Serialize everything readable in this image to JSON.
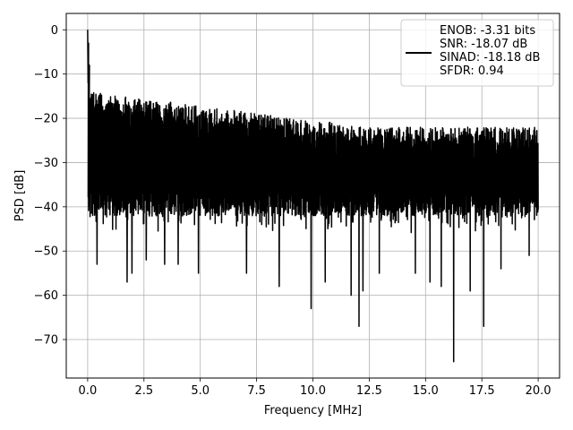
{
  "chart_data": {
    "type": "line",
    "title": "",
    "xlabel": "Frequency [MHz]",
    "ylabel": "PSD [dB]",
    "xlim": [
      -0.95,
      20.95
    ],
    "ylim": [
      -78.7,
      3.7
    ],
    "x_ticks": [
      0.0,
      2.5,
      5.0,
      7.5,
      10.0,
      12.5,
      15.0,
      17.5,
      20.0
    ],
    "x_tick_labels": [
      "0.0",
      "2.5",
      "5.0",
      "7.5",
      "10.0",
      "12.5",
      "15.0",
      "17.5",
      "20.0"
    ],
    "y_ticks": [
      0,
      -10,
      -20,
      -30,
      -40,
      -50,
      -60,
      -70
    ],
    "y_tick_labels": [
      "0",
      "−10",
      "−20",
      "−30",
      "−40",
      "−50",
      "−60",
      "−70"
    ],
    "grid": true,
    "legend_position": "top-right",
    "legend_lines": [
      "ENOB: -3.31 bits",
      "SNR: -18.07 dB",
      "SINAD: -18.18 dB",
      "SFDR: 0.94"
    ],
    "series": [
      {
        "color": "#000000",
        "x_range": [
          0.0,
          20.0
        ],
        "peak": {
          "x": 0.0,
          "y": 0
        },
        "spur": {
          "x": 0.08,
          "y": -8
        },
        "upper_envelope_start": -14,
        "upper_envelope_end": -22,
        "noise_floor_mean": -30,
        "lower_envelope": -42,
        "dips": [
          {
            "x": 0.42,
            "y": -53
          },
          {
            "x": 1.75,
            "y": -57
          },
          {
            "x": 1.97,
            "y": -55
          },
          {
            "x": 2.6,
            "y": -52
          },
          {
            "x": 3.42,
            "y": -53
          },
          {
            "x": 4.02,
            "y": -53
          },
          {
            "x": 4.92,
            "y": -55
          },
          {
            "x": 7.05,
            "y": -55
          },
          {
            "x": 8.5,
            "y": -58
          },
          {
            "x": 9.92,
            "y": -63
          },
          {
            "x": 10.55,
            "y": -57
          },
          {
            "x": 11.7,
            "y": -60
          },
          {
            "x": 12.05,
            "y": -67
          },
          {
            "x": 12.22,
            "y": -59
          },
          {
            "x": 12.95,
            "y": -55
          },
          {
            "x": 14.55,
            "y": -55
          },
          {
            "x": 15.2,
            "y": -57
          },
          {
            "x": 15.7,
            "y": -58
          },
          {
            "x": 16.25,
            "y": -75
          },
          {
            "x": 16.98,
            "y": -59
          },
          {
            "x": 17.58,
            "y": -67
          },
          {
            "x": 18.35,
            "y": -54
          },
          {
            "x": 19.6,
            "y": -51
          }
        ]
      }
    ]
  }
}
